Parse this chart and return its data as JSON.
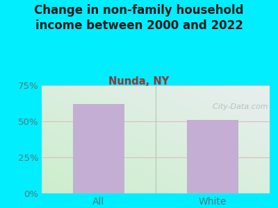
{
  "title": "Change in non-family household\nincome between 2000 and 2022",
  "subtitle": "Nunda, NY",
  "categories": [
    "All",
    "White"
  ],
  "values": [
    62,
    51
  ],
  "bar_color": "#c4aed4",
  "title_fontsize": 12,
  "subtitle_fontsize": 10.5,
  "subtitle_color": "#993333",
  "title_color": "#1a1a1a",
  "tick_color": "#557777",
  "ylim": [
    0,
    75
  ],
  "yticks": [
    0,
    25,
    50,
    75
  ],
  "ytick_labels": [
    "0%",
    "25%",
    "50%",
    "75%"
  ],
  "bg_outer": "#00eeff",
  "bg_plot_topleft": "#ddf0e8",
  "bg_plot_topright": "#e8eef0",
  "bg_plot_bottomleft": "#cceecc",
  "bg_plot_bottomright": "#ddeedd",
  "watermark": "  City-Data.com",
  "grid_color": "#ddbbbb",
  "bar_width": 0.45
}
